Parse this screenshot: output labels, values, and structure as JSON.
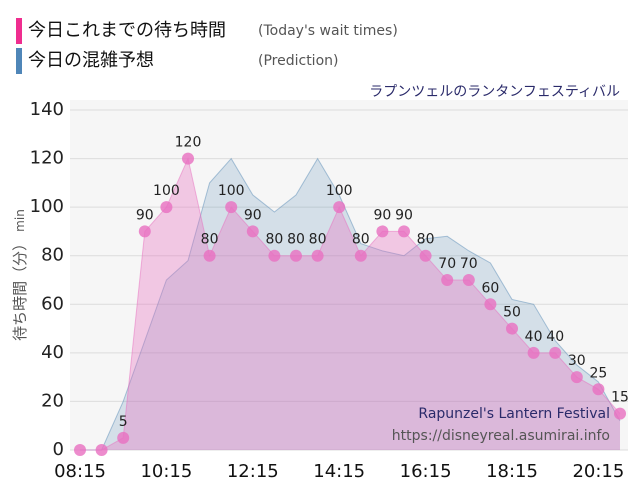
{
  "chart_data": {
    "type": "area",
    "subtitle": "ラプンツェルのランタンフェスティバル",
    "ylabel": "待ち時間（分）",
    "ylabel_unit": "min",
    "watermark": [
      "Rapunzel's Lantern Festival",
      "https://disneyreal.asumirai.info"
    ],
    "categories": [
      "08:15",
      null,
      null,
      null,
      "10:15",
      null,
      null,
      null,
      "12:15",
      null,
      null,
      null,
      "14:15",
      null,
      null,
      null,
      "16:15",
      null,
      null,
      null,
      "18:15",
      null,
      null,
      null,
      "20:15",
      null
    ],
    "series": [
      {
        "name": "今日これまでの待ち時間",
        "note": "(Today's wait times)",
        "color": "#e86fc0",
        "values": [
          0,
          0,
          5,
          90,
          100,
          120,
          80,
          100,
          90,
          80,
          80,
          80,
          100,
          80,
          90,
          90,
          80,
          70,
          70,
          60,
          50,
          40,
          40,
          30,
          25,
          15
        ]
      },
      {
        "name": "今日の混雑予想",
        "note": "(Prediction)",
        "color": "#5b8db8",
        "values": [
          0,
          0,
          20,
          45,
          70,
          78,
          110,
          120,
          105,
          98,
          105,
          120,
          105,
          85,
          82,
          80,
          87,
          88,
          82,
          77,
          62,
          60,
          45,
          35,
          28,
          12
        ]
      }
    ],
    "ylim": [
      0,
      140
    ],
    "yticks": [
      0,
      20,
      40,
      60,
      80,
      100,
      120,
      140
    ],
    "grid": true
  }
}
